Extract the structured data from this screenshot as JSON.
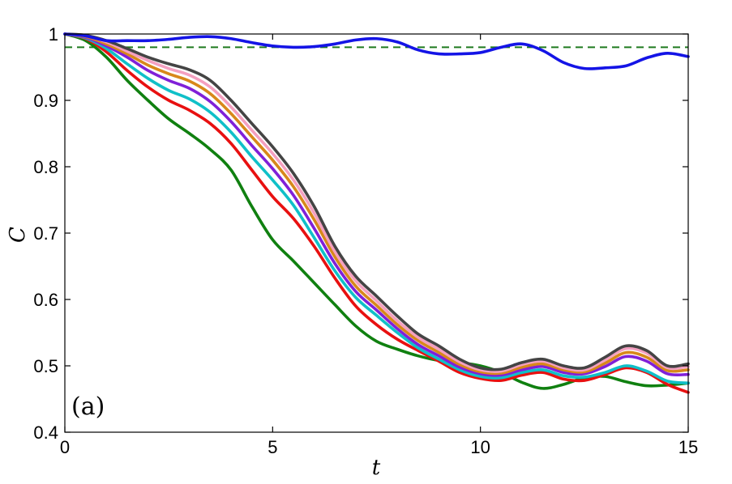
{
  "chart_data": {
    "type": "line",
    "xlabel": "t",
    "ylabel": "C",
    "xlim": [
      0,
      15
    ],
    "ylim": [
      0.4,
      1.0
    ],
    "xticks": [
      "0",
      "5",
      "10",
      "15"
    ],
    "yticks": [
      "0.4",
      "0.5",
      "0.6",
      "0.7",
      "0.8",
      "0.9",
      "1"
    ],
    "annotation": "(a)",
    "grid": false,
    "reference_line": {
      "y": 0.98,
      "style": "dashed",
      "color": "#1e7a1e"
    },
    "series": [
      {
        "color": "#1414e6",
        "x": [
          0,
          0.5,
          1,
          1.5,
          2,
          2.5,
          3,
          3.5,
          4,
          4.5,
          5,
          5.5,
          6,
          6.5,
          7,
          7.5,
          8,
          8.5,
          9,
          9.5,
          10,
          10.5,
          11,
          11.5,
          12,
          12.5,
          13,
          13.5,
          14,
          14.5,
          15
        ],
        "y": [
          1.0,
          0.997,
          0.99,
          0.99,
          0.99,
          0.992,
          0.995,
          0.996,
          0.993,
          0.987,
          0.982,
          0.98,
          0.981,
          0.985,
          0.991,
          0.993,
          0.988,
          0.976,
          0.97,
          0.97,
          0.972,
          0.98,
          0.985,
          0.975,
          0.957,
          0.948,
          0.949,
          0.952,
          0.964,
          0.971,
          0.966
        ]
      },
      {
        "color": "#444444",
        "x": [
          0,
          0.5,
          1,
          1.5,
          2,
          2.5,
          3,
          3.5,
          4,
          4.5,
          5,
          5.5,
          6,
          6.5,
          7,
          7.5,
          8,
          8.5,
          9,
          9.5,
          10,
          10.5,
          11,
          11.5,
          12,
          12.5,
          13,
          13.5,
          14,
          14.5,
          15
        ],
        "y": [
          1.0,
          0.998,
          0.99,
          0.978,
          0.965,
          0.955,
          0.946,
          0.93,
          0.9,
          0.865,
          0.83,
          0.79,
          0.74,
          0.68,
          0.635,
          0.605,
          0.575,
          0.548,
          0.53,
          0.51,
          0.497,
          0.495,
          0.505,
          0.51,
          0.5,
          0.497,
          0.513,
          0.53,
          0.523,
          0.5,
          0.503
        ]
      },
      {
        "color": "#f4a0c0",
        "x": [
          0,
          0.5,
          1,
          1.5,
          2,
          2.5,
          3,
          3.5,
          4,
          4.5,
          5,
          5.5,
          6,
          6.5,
          7,
          7.5,
          8,
          8.5,
          9,
          9.5,
          10,
          10.5,
          11,
          11.5,
          12,
          12.5,
          13,
          13.5,
          14,
          14.5,
          15
        ],
        "y": [
          1.0,
          0.997,
          0.988,
          0.974,
          0.96,
          0.948,
          0.938,
          0.92,
          0.89,
          0.855,
          0.82,
          0.78,
          0.73,
          0.672,
          0.628,
          0.598,
          0.568,
          0.543,
          0.525,
          0.506,
          0.494,
          0.492,
          0.502,
          0.507,
          0.497,
          0.494,
          0.509,
          0.526,
          0.519,
          0.497,
          0.499
        ]
      },
      {
        "color": "#d8881a",
        "x": [
          0,
          0.5,
          1,
          1.5,
          2,
          2.5,
          3,
          3.5,
          4,
          4.5,
          5,
          5.5,
          6,
          6.5,
          7,
          7.5,
          8,
          8.5,
          9,
          9.5,
          10,
          10.5,
          11,
          11.5,
          12,
          12.5,
          13,
          13.5,
          14,
          14.5,
          15
        ],
        "y": [
          1.0,
          0.996,
          0.985,
          0.97,
          0.953,
          0.94,
          0.929,
          0.91,
          0.88,
          0.845,
          0.81,
          0.77,
          0.72,
          0.664,
          0.62,
          0.591,
          0.562,
          0.538,
          0.52,
          0.502,
          0.491,
          0.489,
          0.498,
          0.503,
          0.494,
          0.491,
          0.504,
          0.52,
          0.513,
          0.493,
          0.494
        ]
      },
      {
        "color": "#8020d8",
        "x": [
          0,
          0.5,
          1,
          1.5,
          2,
          2.5,
          3,
          3.5,
          4,
          4.5,
          5,
          5.5,
          6,
          6.5,
          7,
          7.5,
          8,
          8.5,
          9,
          9.5,
          10,
          10.5,
          11,
          11.5,
          12,
          12.5,
          13,
          13.5,
          14,
          14.5,
          15
        ],
        "y": [
          1.0,
          0.995,
          0.982,
          0.965,
          0.945,
          0.93,
          0.918,
          0.898,
          0.868,
          0.832,
          0.797,
          0.757,
          0.707,
          0.654,
          0.612,
          0.584,
          0.556,
          0.532,
          0.515,
          0.498,
          0.488,
          0.486,
          0.494,
          0.499,
          0.49,
          0.488,
          0.499,
          0.514,
          0.507,
          0.488,
          0.487
        ]
      },
      {
        "color": "#10c0c8",
        "x": [
          0,
          0.5,
          1,
          1.5,
          2,
          2.5,
          3,
          3.5,
          4,
          4.5,
          5,
          5.5,
          6,
          6.5,
          7,
          7.5,
          8,
          8.5,
          9,
          9.5,
          10,
          10.5,
          11,
          11.5,
          12,
          12.5,
          13,
          13.5,
          14,
          14.5,
          15
        ],
        "y": [
          1.0,
          0.994,
          0.978,
          0.955,
          0.933,
          0.915,
          0.902,
          0.882,
          0.852,
          0.815,
          0.78,
          0.742,
          0.693,
          0.643,
          0.603,
          0.576,
          0.55,
          0.527,
          0.51,
          0.494,
          0.484,
          0.482,
          0.49,
          0.494,
          0.485,
          0.483,
          0.49,
          0.5,
          0.492,
          0.477,
          0.474
        ]
      },
      {
        "color": "#e81010",
        "x": [
          0,
          0.5,
          1,
          1.5,
          2,
          2.5,
          3,
          3.5,
          4,
          4.5,
          5,
          5.5,
          6,
          6.5,
          7,
          7.5,
          8,
          8.5,
          9,
          9.5,
          10,
          10.5,
          11,
          11.5,
          12,
          12.5,
          13,
          13.5,
          14,
          14.5,
          15
        ],
        "y": [
          1.0,
          0.993,
          0.973,
          0.945,
          0.92,
          0.9,
          0.885,
          0.865,
          0.835,
          0.795,
          0.755,
          0.722,
          0.68,
          0.632,
          0.59,
          0.562,
          0.54,
          0.523,
          0.507,
          0.49,
          0.481,
          0.478,
          0.486,
          0.49,
          0.48,
          0.478,
          0.487,
          0.497,
          0.49,
          0.472,
          0.46
        ]
      },
      {
        "color": "#108010",
        "x": [
          0,
          0.5,
          1,
          1.5,
          2,
          2.5,
          3,
          3.5,
          4,
          4.5,
          5,
          5.5,
          6,
          6.5,
          7,
          7.5,
          8,
          8.5,
          9,
          9.5,
          10,
          10.5,
          11,
          11.5,
          12,
          12.5,
          13,
          13.5,
          14,
          14.5,
          15
        ],
        "y": [
          1.0,
          0.99,
          0.965,
          0.93,
          0.9,
          0.872,
          0.85,
          0.826,
          0.795,
          0.74,
          0.69,
          0.658,
          0.625,
          0.592,
          0.56,
          0.537,
          0.525,
          0.515,
          0.508,
          0.505,
          0.5,
          0.49,
          0.475,
          0.466,
          0.472,
          0.482,
          0.484,
          0.476,
          0.47,
          0.471,
          0.474
        ]
      }
    ]
  }
}
